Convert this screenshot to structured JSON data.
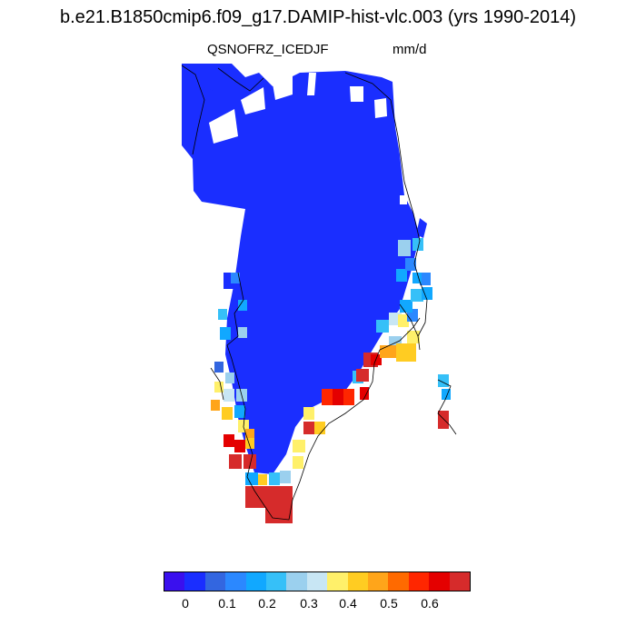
{
  "title": "b.e21.B1850cmip6.f09_g17.DAMIP-hist-vlc.003 (yrs 1990-2014)",
  "variable": "QSNOFRZ_ICE",
  "season": "DJF",
  "units": "mm/d",
  "colors": {
    "ice": "#1a2eff",
    "edge_high": "#d62b2b",
    "coast": "#000000"
  },
  "colorbar": {
    "colors": [
      "#3a10ee",
      "#1a2eff",
      "#3366e0",
      "#2b88ff",
      "#11a8ff",
      "#36c0f8",
      "#9bd0ee",
      "#c8e6f4",
      "#fff06a",
      "#ffcc22",
      "#ffa51a",
      "#ff6a00",
      "#ff2600",
      "#e40000",
      "#d62b2b"
    ],
    "tick_labels": [
      "0",
      "0.1",
      "0.2",
      "0.3",
      "0.4",
      "0.5",
      "0.6"
    ]
  },
  "map": {
    "region": "Greenland",
    "cells": [
      {
        "value": 0.3,
        "c": "#9bd0ee"
      },
      {
        "value": 0.15,
        "c": "#2b88ff"
      },
      {
        "value": 0.4,
        "c": "#fff06a"
      },
      {
        "value": 0.45,
        "c": "#ffcc22"
      },
      {
        "value": 0.65,
        "c": "#d62b2b"
      },
      {
        "value": 0.6,
        "c": "#e40000"
      },
      {
        "value": 0.55,
        "c": "#ff2600"
      },
      {
        "value": 0.2,
        "c": "#11a8ff"
      },
      {
        "value": 0.25,
        "c": "#36c0f8"
      },
      {
        "value": 0.35,
        "c": "#c8e6f4"
      },
      {
        "value": 0.5,
        "c": "#ff6a00"
      },
      {
        "value": 0.1,
        "c": "#3366e0"
      }
    ]
  }
}
